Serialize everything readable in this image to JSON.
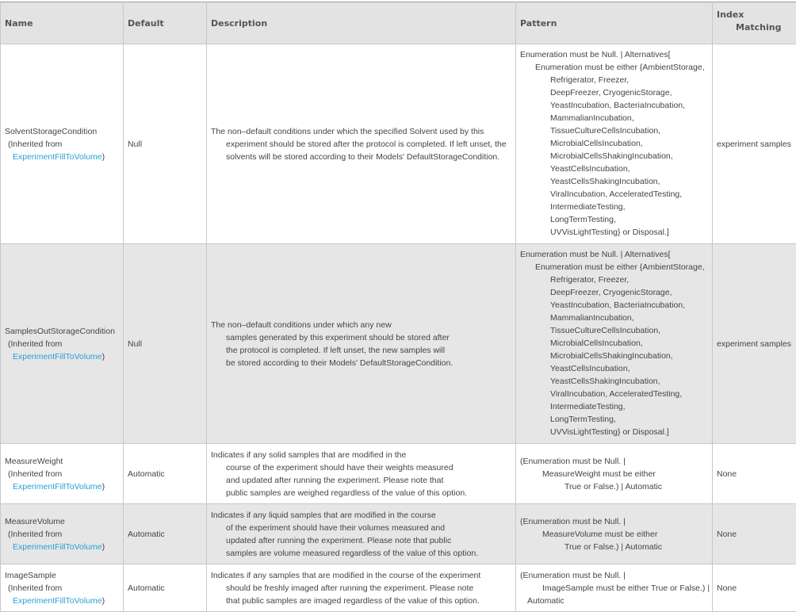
{
  "headers": {
    "name": "Name",
    "default": "Default",
    "description": "Description",
    "pattern": "Pattern",
    "index_matching_1": "Index",
    "index_matching_2": "Matching"
  },
  "rows": [
    {
      "name": "SolventStorageCondition",
      "inherited": "(Inherited from",
      "link": "ExperimentFillToVolume",
      "link_suffix": ")",
      "default": "Null",
      "description": [
        "The non–default conditions under which the specified Solvent used by this",
        "experiment should be stored after the protocol is completed. If left unset, the",
        "solvents will be stored according to their Models' DefaultStorageCondition."
      ],
      "pattern": [
        {
          "level": 0,
          "text": "Enumeration must be Null.  | Alternatives["
        },
        {
          "level": 1,
          "text": "Enumeration must be either {AmbientStorage,"
        },
        {
          "level": 2,
          "text": "Refrigerator, Freezer,"
        },
        {
          "level": 2,
          "text": "DeepFreezer, CryogenicStorage,"
        },
        {
          "level": 2,
          "text": "YeastIncubation, BacteriaIncubation,"
        },
        {
          "level": 2,
          "text": "MammalianIncubation,"
        },
        {
          "level": 2,
          "text": "TissueCultureCellsIncubation,"
        },
        {
          "level": 2,
          "text": "MicrobialCellsIncubation,"
        },
        {
          "level": 2,
          "text": "MicrobialCellsShakingIncubation,"
        },
        {
          "level": 2,
          "text": "YeastCellsIncubation,"
        },
        {
          "level": 2,
          "text": "YeastCellsShakingIncubation,"
        },
        {
          "level": 2,
          "text": "ViralIncubation, AcceleratedTesting,"
        },
        {
          "level": 2,
          "text": "IntermediateTesting,"
        },
        {
          "level": 2,
          "text": "LongTermTesting,"
        },
        {
          "level": 2,
          "text": "UVVisLightTesting} or Disposal.]"
        }
      ],
      "index_matching": "experiment samples"
    },
    {
      "name": "SamplesOutStorageCondition",
      "inherited": "(Inherited from",
      "link": "ExperimentFillToVolume",
      "link_suffix": ")",
      "default": "Null",
      "description": [
        "The non–default conditions under which any new",
        "samples generated by this experiment should be stored after",
        "the protocol is completed. If left unset, the new samples will",
        "be stored according to their Models' DefaultStorageCondition."
      ],
      "pattern": [
        {
          "level": 0,
          "text": "Enumeration must be Null.  | Alternatives["
        },
        {
          "level": 1,
          "text": "Enumeration must be either {AmbientStorage,"
        },
        {
          "level": 2,
          "text": "Refrigerator, Freezer,"
        },
        {
          "level": 2,
          "text": "DeepFreezer, CryogenicStorage,"
        },
        {
          "level": 2,
          "text": "YeastIncubation, BacteriaIncubation,"
        },
        {
          "level": 2,
          "text": "MammalianIncubation,"
        },
        {
          "level": 2,
          "text": "TissueCultureCellsIncubation,"
        },
        {
          "level": 2,
          "text": "MicrobialCellsIncubation,"
        },
        {
          "level": 2,
          "text": "MicrobialCellsShakingIncubation,"
        },
        {
          "level": 2,
          "text": "YeastCellsIncubation,"
        },
        {
          "level": 2,
          "text": "YeastCellsShakingIncubation,"
        },
        {
          "level": 2,
          "text": "ViralIncubation, AcceleratedTesting,"
        },
        {
          "level": 2,
          "text": "IntermediateTesting,"
        },
        {
          "level": 2,
          "text": "LongTermTesting,"
        },
        {
          "level": 2,
          "text": "UVVisLightTesting} or Disposal.]"
        }
      ],
      "index_matching": "experiment samples"
    },
    {
      "name": "MeasureWeight",
      "inherited": "(Inherited from",
      "link": "ExperimentFillToVolume",
      "link_suffix": ")",
      "default": "Automatic",
      "description": [
        "Indicates if any solid samples that are modified in the",
        "course of the experiment should have their weights measured",
        "and updated after running the experiment. Please note that",
        "public samples are weighed regardless of the value of this option."
      ],
      "pattern": [
        {
          "level": 0,
          "text": "(Enumeration must be Null.  |"
        },
        {
          "level": 1,
          "text": "MeasureWeight must be either"
        },
        {
          "level": 2,
          "text": "True or False.) | Automatic"
        }
      ],
      "index_matching": "None"
    },
    {
      "name": "MeasureVolume",
      "inherited": "(Inherited from",
      "link": "ExperimentFillToVolume",
      "link_suffix": ")",
      "default": "Automatic",
      "description": [
        "Indicates if any liquid samples that are modified in the course",
        "of the experiment should have their volumes measured and",
        "updated after running the experiment. Please note that public",
        "samples are volume measured regardless of the value of this option."
      ],
      "pattern": [
        {
          "level": 0,
          "text": "(Enumeration must be Null.  |"
        },
        {
          "level": 1,
          "text": "MeasureVolume must be either"
        },
        {
          "level": 2,
          "text": "True or False.) | Automatic"
        }
      ],
      "index_matching": "None"
    },
    {
      "name": "ImageSample",
      "inherited": "(Inherited from",
      "link": "ExperimentFillToVolume",
      "link_suffix": ")",
      "default": "Automatic",
      "description": [
        "Indicates if any samples that are modified in the course of the experiment",
        "should be freshly imaged after running the experiment. Please note",
        "that public samples are imaged regardless of the value of this option."
      ],
      "pattern": [
        {
          "level": 0,
          "text": "(Enumeration must be Null.  |"
        },
        {
          "level": 1,
          "text": "ImageSample must be either True or False.)  |"
        },
        {
          "level": "0.5",
          "text": "Automatic"
        }
      ],
      "index_matching": "None"
    }
  ]
}
